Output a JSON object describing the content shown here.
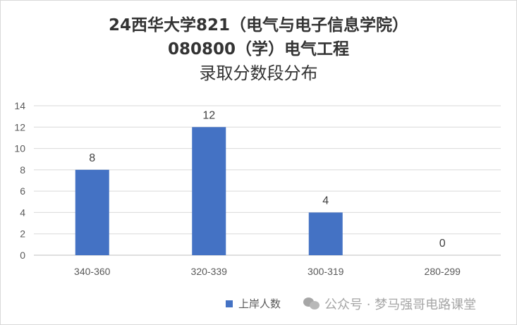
{
  "chart_data": {
    "type": "bar",
    "title_lines": [
      "24西华大学821（电气与电子信息学院）",
      "080800（学）电气工程",
      "录取分数段分布"
    ],
    "categories": [
      "340-360",
      "320-339",
      "300-319",
      "280-299"
    ],
    "series": [
      {
        "name": "上岸人数",
        "values": [
          8,
          12,
          4,
          0
        ],
        "color": "#4472c4"
      }
    ],
    "ylim": [
      0,
      14
    ],
    "yticks": [
      0,
      2,
      4,
      6,
      8,
      10,
      12,
      14
    ],
    "grid": true,
    "legend": "bottom",
    "data_labels": true
  },
  "watermark": "公众号 · 梦马强哥电路课堂"
}
